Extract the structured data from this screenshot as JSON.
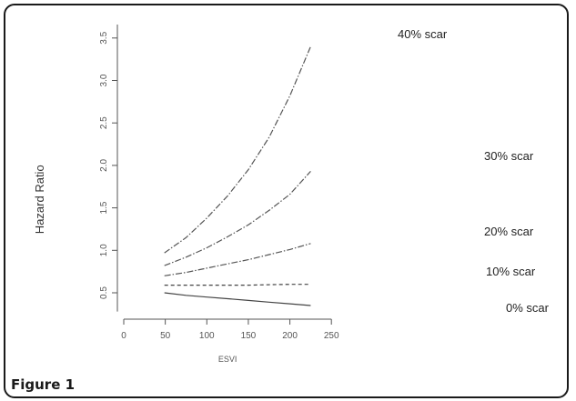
{
  "figure": {
    "caption": "Figure 1"
  },
  "chart_data": {
    "type": "line",
    "title": "",
    "xlabel": "ESVI",
    "ylabel": "Hazard Ratio",
    "xlim": [
      0,
      250
    ],
    "ylim": [
      0.3,
      3.6
    ],
    "xticks": [
      0,
      50,
      100,
      150,
      200,
      250
    ],
    "yticks": [
      0.5,
      1.0,
      1.5,
      2.0,
      2.5,
      3.0,
      3.5
    ],
    "xtick_labels": [
      "0",
      "50",
      "100",
      "150",
      "200",
      "250"
    ],
    "ytick_labels": [
      "0.5",
      "1.0",
      "1.5",
      "2.0",
      "2.5",
      "3.0",
      "3.5"
    ],
    "grid": false,
    "legend": "none",
    "series": [
      {
        "name": "0% scar",
        "dash": "solid",
        "x": [
          49,
          75,
          100,
          125,
          150,
          175,
          200,
          225
        ],
        "y": [
          0.5,
          0.47,
          0.45,
          0.43,
          0.41,
          0.39,
          0.37,
          0.35
        ]
      },
      {
        "name": "10% scar",
        "dash": "dashed",
        "x": [
          49,
          75,
          100,
          125,
          150,
          175,
          200,
          225
        ],
        "y": [
          0.59,
          0.59,
          0.59,
          0.59,
          0.59,
          0.595,
          0.6,
          0.6
        ]
      },
      {
        "name": "20% scar",
        "dash": "dashdot",
        "x": [
          49,
          75,
          100,
          125,
          150,
          175,
          200,
          225
        ],
        "y": [
          0.7,
          0.74,
          0.79,
          0.84,
          0.89,
          0.95,
          1.01,
          1.08
        ]
      },
      {
        "name": "30% scar",
        "dash": "dashdot",
        "x": [
          49,
          75,
          100,
          125,
          150,
          175,
          200,
          225
        ],
        "y": [
          0.82,
          0.92,
          1.03,
          1.16,
          1.3,
          1.47,
          1.66,
          1.93
        ]
      },
      {
        "name": "40% scar",
        "dash": "dashdot",
        "x": [
          49,
          75,
          100,
          125,
          150,
          175,
          200,
          225
        ],
        "y": [
          0.97,
          1.15,
          1.38,
          1.64,
          1.95,
          2.33,
          2.82,
          3.4
        ]
      }
    ]
  }
}
